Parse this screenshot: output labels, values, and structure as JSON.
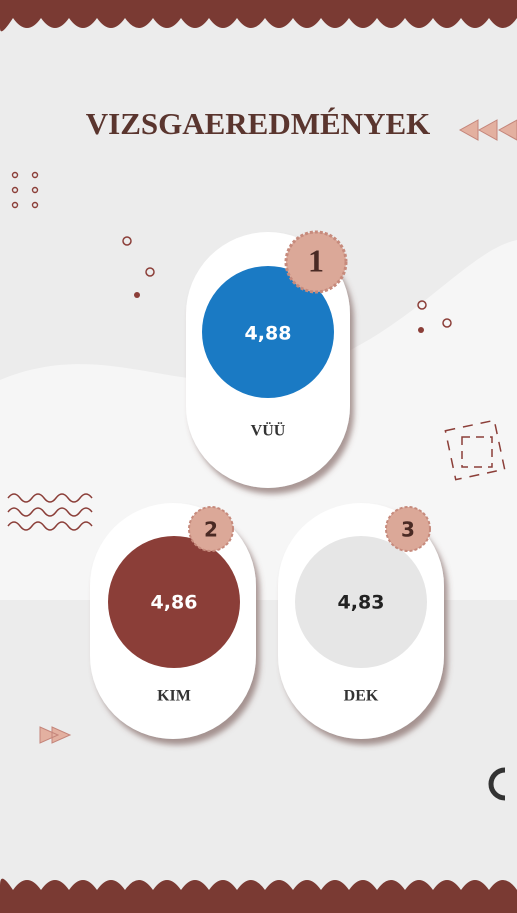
{
  "header": {
    "title": "VIZSGAEREDMÉNYEK"
  },
  "podium": [
    {
      "rank": "1",
      "value": "4,88",
      "name": "VÜÜ"
    },
    {
      "rank": "2",
      "value": "4,86",
      "name": "KIM"
    },
    {
      "rank": "3",
      "value": "4,83",
      "name": "DEK"
    }
  ]
}
